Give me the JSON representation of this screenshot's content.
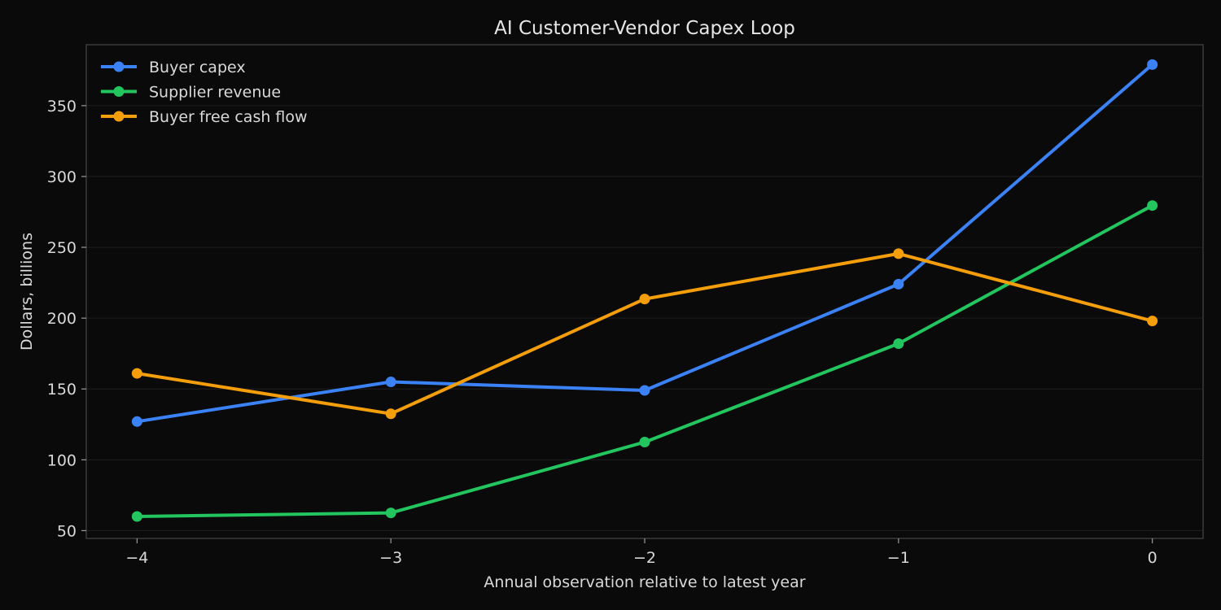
{
  "chart_data": {
    "type": "line",
    "title": "AI Customer-Vendor Capex Loop",
    "xlabel": "Annual observation relative to latest year",
    "ylabel": "Dollars, billions",
    "x": [
      -4,
      -3,
      -2,
      -1,
      0
    ],
    "x_tick_labels": [
      "−4",
      "−3",
      "−2",
      "−1",
      "0"
    ],
    "xlim": [
      -4.2,
      0.2
    ],
    "ylim": [
      44.5,
      393
    ],
    "y_ticks": [
      50,
      100,
      150,
      200,
      250,
      300,
      350
    ],
    "grid": "horizontal",
    "legend_position": "top-left",
    "series": [
      {
        "name": "Buyer capex",
        "color": "#3b82f6",
        "values": [
          127,
          155,
          149,
          224,
          379
        ]
      },
      {
        "name": "Supplier revenue",
        "color": "#22c55e",
        "values": [
          60,
          62.5,
          112.5,
          182,
          279.5
        ]
      },
      {
        "name": "Buyer free cash flow",
        "color": "#f59e0b",
        "values": [
          161,
          132.5,
          213.5,
          245.5,
          198
        ]
      }
    ]
  }
}
